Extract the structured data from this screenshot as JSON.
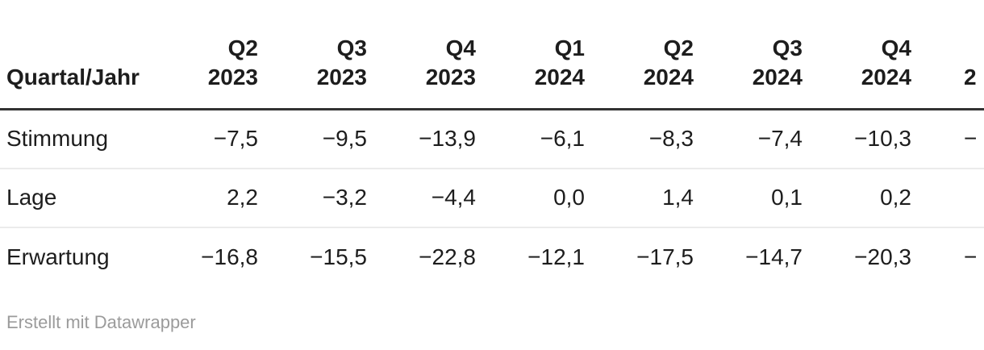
{
  "colors": {
    "text": "#1d1d1d",
    "header_rule": "#333333",
    "row_divider": "#ebebeb",
    "attribution": "#9b9b9b",
    "background": "#ffffff"
  },
  "table": {
    "label_header": "Quartal/Jahr",
    "quarter_headers": [
      {
        "quarter": "Q2",
        "year": "2023"
      },
      {
        "quarter": "Q3",
        "year": "2023"
      },
      {
        "quarter": "Q4",
        "year": "2023"
      },
      {
        "quarter": "Q1",
        "year": "2024"
      },
      {
        "quarter": "Q2",
        "year": "2024"
      },
      {
        "quarter": "Q3",
        "year": "2024"
      },
      {
        "quarter": "Q4",
        "year": "2024"
      },
      {
        "quarter": "",
        "year": "2"
      }
    ],
    "rows": [
      {
        "label": "Stimmung",
        "values": [
          "−7,5",
          "−9,5",
          "−13,9",
          "−6,1",
          "−8,3",
          "−7,4",
          "−10,3",
          "−"
        ]
      },
      {
        "label": "Lage",
        "values": [
          "2,2",
          "−3,2",
          "−4,4",
          "0,0",
          "1,4",
          "0,1",
          "0,2",
          ""
        ]
      },
      {
        "label": "Erwartung",
        "values": [
          "−16,8",
          "−15,5",
          "−22,8",
          "−12,1",
          "−17,5",
          "−14,7",
          "−20,3",
          "−"
        ]
      }
    ]
  },
  "footer": {
    "attribution": "Erstellt mit Datawrapper"
  },
  "chart_data": {
    "type": "table",
    "title": "",
    "columns": [
      "Quartal/Jahr",
      "Q2 2023",
      "Q3 2023",
      "Q4 2023",
      "Q1 2024",
      "Q2 2024",
      "Q3 2024",
      "Q4 2024",
      "2"
    ],
    "rows": [
      {
        "label": "Stimmung",
        "values": [
          -7.5,
          -9.5,
          -13.9,
          -6.1,
          -8.3,
          -7.4,
          -10.3,
          null
        ]
      },
      {
        "label": "Lage",
        "values": [
          2.2,
          -3.2,
          -4.4,
          0.0,
          1.4,
          0.1,
          0.2,
          null
        ]
      },
      {
        "label": "Erwartung",
        "values": [
          -16.8,
          -15.5,
          -22.8,
          -12.1,
          -17.5,
          -14.7,
          -20.3,
          null
        ]
      }
    ],
    "notes": "last column truncated at right edge of screenshot; only leading glyphs visible",
    "number_format": "german decimal comma, U+2212 minus",
    "layout": {
      "numeric_columns_align": "right",
      "label_column_align": "left",
      "grid": "horizontal row dividers only"
    }
  }
}
